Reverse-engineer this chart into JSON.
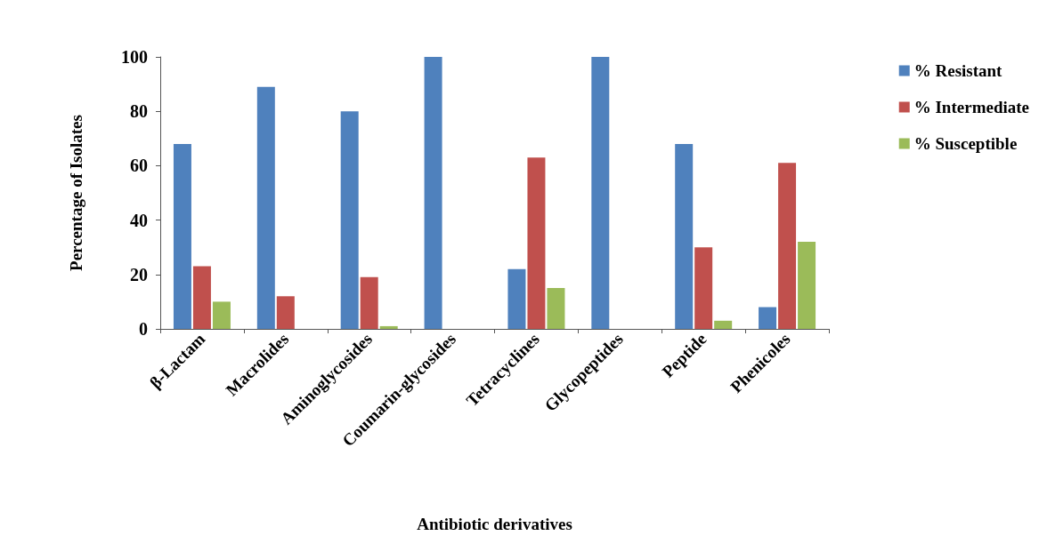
{
  "chart_data": {
    "type": "bar",
    "xlabel": "Antibiotic derivatives",
    "ylabel": "Percentage of Isolates",
    "categories": [
      "β-Lactam",
      "Macrolides",
      "Aminoglycosides",
      "Coumarin-glycosides",
      "Tetracyclines",
      "Glycopeptides",
      "Peptide",
      "Phenicoles"
    ],
    "series": [
      {
        "name": "% Resistant",
        "color": "#4f81bd",
        "values": [
          68,
          89,
          80,
          100,
          22,
          100,
          68,
          8
        ]
      },
      {
        "name": "% Intermediate",
        "color": "#c0504d",
        "values": [
          23,
          12,
          19,
          0,
          63,
          0,
          30,
          61
        ]
      },
      {
        "name": "% Susceptible",
        "color": "#9bbb59",
        "values": [
          10,
          0,
          1,
          0,
          15,
          0,
          3,
          32
        ]
      }
    ],
    "ylim": [
      0,
      100
    ],
    "yticks": [
      0,
      20,
      40,
      60,
      80,
      100
    ],
    "grid": false,
    "legend": "top right"
  }
}
